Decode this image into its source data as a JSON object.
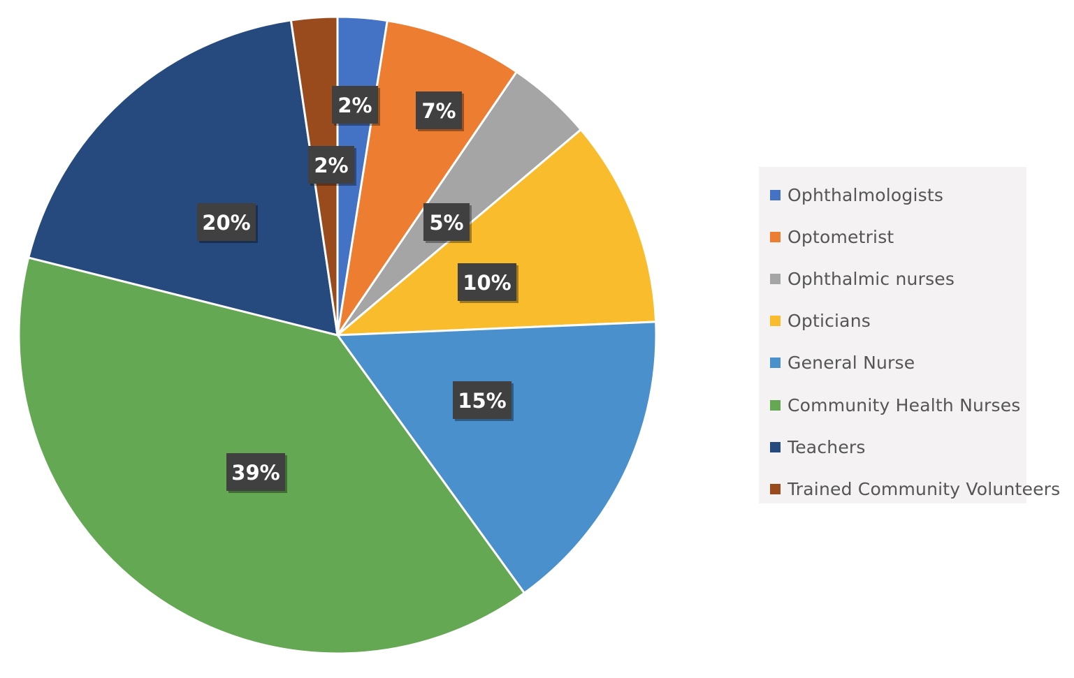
{
  "chart_data": {
    "type": "pie",
    "title": "",
    "series": [
      {
        "values": [
          2,
          7,
          5,
          10,
          15,
          39,
          20,
          2
        ]
      }
    ],
    "categories": [
      "Ophthalmologists",
      "Optometrist",
      "Ophthalmic nurses",
      "Opticians",
      "General Nurse",
      "Community Health Nurses",
      "Teachers",
      "Trained Community Volunteers"
    ],
    "data_labels": [
      "2%",
      "7%",
      "5%",
      "10%",
      "15%",
      "39%",
      "20%",
      "2%"
    ],
    "colors": [
      "#4472c4",
      "#ed7d31",
      "#a5a5a5",
      "#f8bc2c",
      "#4a90cc",
      "#65a853",
      "#264a7e",
      "#9a4b1d"
    ],
    "legend_position": "right",
    "data_label_fill": "#404040",
    "data_label_color": "#ffffff"
  }
}
